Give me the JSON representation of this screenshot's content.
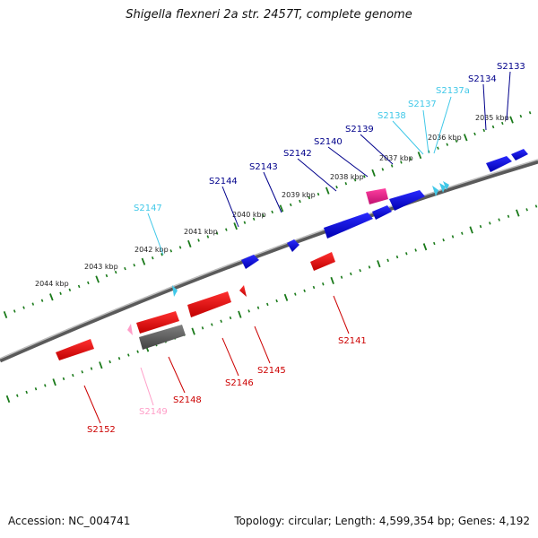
{
  "title": "Shigella flexneri 2a str. 2457T, complete genome",
  "footer": {
    "accession": "Accession: NC_004741",
    "summary": "Topology: circular; Length: 4,599,354 bp; Genes: 4,192"
  },
  "colors": {
    "forward_gene": "#0000dd",
    "forward_label": "#00008b",
    "reverse_gene": "#ee0000",
    "reverse_label": "#cc0000",
    "trna": "#40c8e8",
    "pseudo": "#ff9ec8",
    "misc": "#e0308a",
    "other": "#606060",
    "backbone": "#888888",
    "tick": "#1a7a1a"
  },
  "ruler_labels": [
    "2035 kbp",
    "2036 kbp",
    "2037 kbp",
    "2038 kbp",
    "2039 kbp",
    "2040 kbp",
    "2041 kbp",
    "2042 kbp",
    "2043 kbp",
    "2044 kbp"
  ],
  "genes_top": [
    {
      "name": "S2133",
      "type": "forward"
    },
    {
      "name": "S2134",
      "type": "forward"
    },
    {
      "name": "S2137a",
      "type": "trna"
    },
    {
      "name": "S2137",
      "type": "trna"
    },
    {
      "name": "S2138",
      "type": "trna"
    },
    {
      "name": "S2139",
      "type": "forward"
    },
    {
      "name": "S2140",
      "type": "forward"
    },
    {
      "name": "S2142",
      "type": "forward"
    },
    {
      "name": "S2143",
      "type": "forward"
    },
    {
      "name": "S2144",
      "type": "forward"
    },
    {
      "name": "S2147",
      "type": "trna"
    }
  ],
  "genes_bottom": [
    {
      "name": "S2141",
      "type": "reverse"
    },
    {
      "name": "S2145",
      "type": "reverse"
    },
    {
      "name": "S2146",
      "type": "reverse"
    },
    {
      "name": "S2148",
      "type": "reverse"
    },
    {
      "name": "S2149",
      "type": "pseudo"
    },
    {
      "name": "S2152",
      "type": "reverse"
    }
  ]
}
